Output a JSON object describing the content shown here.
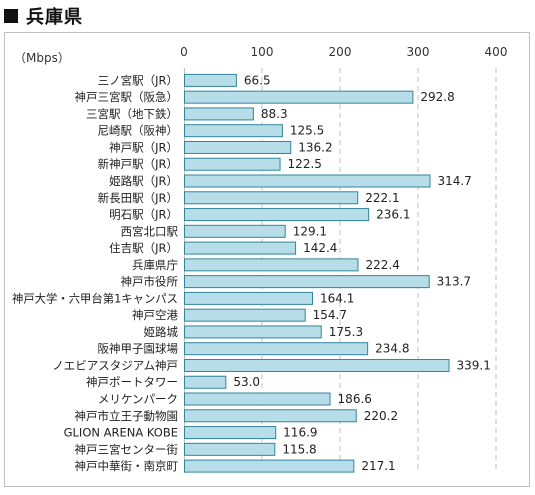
{
  "heading": {
    "title": "兵庫県"
  },
  "chart_data": {
    "type": "bar",
    "orientation": "horizontal",
    "unit_label": "（Mbps）",
    "xlim": [
      0,
      400
    ],
    "xticks": [
      0,
      100,
      200,
      300,
      400
    ],
    "grid": true,
    "bar_color": "#b7dde8",
    "bar_stroke": "#31859c",
    "categories": [
      "三ノ宮駅（JR）",
      "神戸三宮駅（阪急）",
      "三宮駅（地下鉄）",
      "尼崎駅（阪神）",
      "神戸駅（JR）",
      "新神戸駅（JR）",
      "姫路駅（JR）",
      "新長田駅（JR）",
      "明石駅（JR）",
      "西宮北口駅",
      "住吉駅（JR）",
      "兵庫県庁",
      "神戸市役所",
      "神戸大学・六甲台第1キャンパス",
      "神戸空港",
      "姫路城",
      "阪神甲子園球場",
      "ノエビアスタジアム神戸",
      "神戸ポートタワー",
      "メリケンパーク",
      "神戸市立王子動物園",
      "GLION ARENA KOBE",
      "神戸三宮センター街",
      "神戸中華街・南京町"
    ],
    "values": [
      66.5,
      292.8,
      88.3,
      125.5,
      136.2,
      122.5,
      314.7,
      222.1,
      236.1,
      129.1,
      142.4,
      222.4,
      313.7,
      164.1,
      154.7,
      175.3,
      234.8,
      339.1,
      53.0,
      186.6,
      220.2,
      116.9,
      115.8,
      217.1
    ],
    "value_labels": [
      "66.5",
      "292.8",
      "88.3",
      "125.5",
      "136.2",
      "122.5",
      "314.7",
      "222.1",
      "236.1",
      "129.1",
      "142.4",
      "222.4",
      "313.7",
      "164.1",
      "154.7",
      "175.3",
      "234.8",
      "339.1",
      "53.0",
      "186.6",
      "220.2",
      "116.9",
      "115.8",
      "217.1"
    ]
  }
}
